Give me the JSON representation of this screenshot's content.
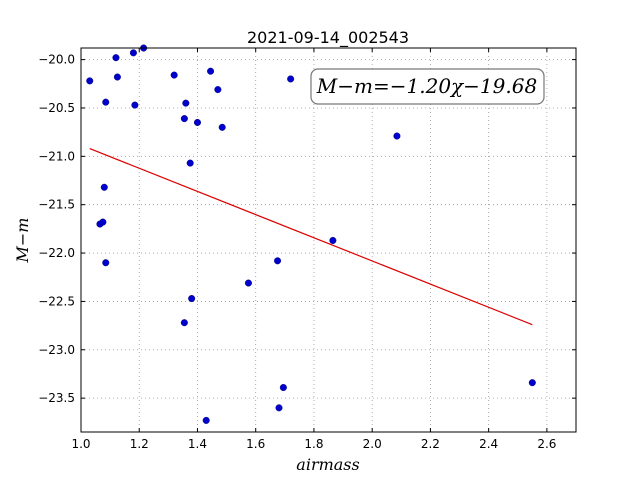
{
  "chart_data": {
    "type": "scatter",
    "title": "2021-09-14_002543",
    "xlabel": "airmass",
    "ylabel": "M−m",
    "xlim": [
      1.0,
      2.7
    ],
    "ylim": [
      -23.85,
      -19.88
    ],
    "grid": true,
    "x_ticks": [
      1.0,
      1.2,
      1.4,
      1.6,
      1.8,
      2.0,
      2.2,
      2.4,
      2.6
    ],
    "x_tick_labels": [
      "1.0",
      "1.2",
      "1.4",
      "1.6",
      "1.8",
      "2.0",
      "2.2",
      "2.4",
      "2.6"
    ],
    "y_ticks": [
      -20.0,
      -20.5,
      -21.0,
      -21.5,
      -22.0,
      -22.5,
      -23.0,
      -23.5
    ],
    "y_tick_labels": [
      "−20.0",
      "−20.5",
      "−21.0",
      "−21.5",
      "−22.0",
      "−22.5",
      "−23.0",
      "−23.5"
    ],
    "points": [
      {
        "x": 1.03,
        "y": -20.22
      },
      {
        "x": 1.085,
        "y": -20.44
      },
      {
        "x": 1.12,
        "y": -19.98
      },
      {
        "x": 1.125,
        "y": -20.18
      },
      {
        "x": 1.18,
        "y": -19.93
      },
      {
        "x": 1.215,
        "y": -19.88
      },
      {
        "x": 1.185,
        "y": -20.47
      },
      {
        "x": 1.08,
        "y": -21.32
      },
      {
        "x": 1.065,
        "y": -21.7
      },
      {
        "x": 1.075,
        "y": -21.68
      },
      {
        "x": 1.085,
        "y": -22.1
      },
      {
        "x": 1.32,
        "y": -20.16
      },
      {
        "x": 1.36,
        "y": -20.45
      },
      {
        "x": 1.355,
        "y": -20.61
      },
      {
        "x": 1.4,
        "y": -20.65
      },
      {
        "x": 1.445,
        "y": -20.12
      },
      {
        "x": 1.47,
        "y": -20.31
      },
      {
        "x": 1.485,
        "y": -20.7
      },
      {
        "x": 1.375,
        "y": -21.07
      },
      {
        "x": 1.38,
        "y": -22.47
      },
      {
        "x": 1.355,
        "y": -22.72
      },
      {
        "x": 1.43,
        "y": -23.73
      },
      {
        "x": 1.575,
        "y": -22.31
      },
      {
        "x": 1.675,
        "y": -22.08
      },
      {
        "x": 1.72,
        "y": -20.2
      },
      {
        "x": 1.865,
        "y": -21.87
      },
      {
        "x": 2.085,
        "y": -20.79
      },
      {
        "x": 1.695,
        "y": -23.39
      },
      {
        "x": 1.68,
        "y": -23.6
      },
      {
        "x": 2.55,
        "y": -23.34
      }
    ],
    "fit_line": {
      "x": [
        1.03,
        2.55
      ],
      "y": [
        -20.92,
        -22.74
      ]
    },
    "annotation": "M−m=−1.20χ−19.68",
    "colors": {
      "points": "#0000cc",
      "fit_line": "#dd0000",
      "grid": "#9a9a9a"
    }
  }
}
